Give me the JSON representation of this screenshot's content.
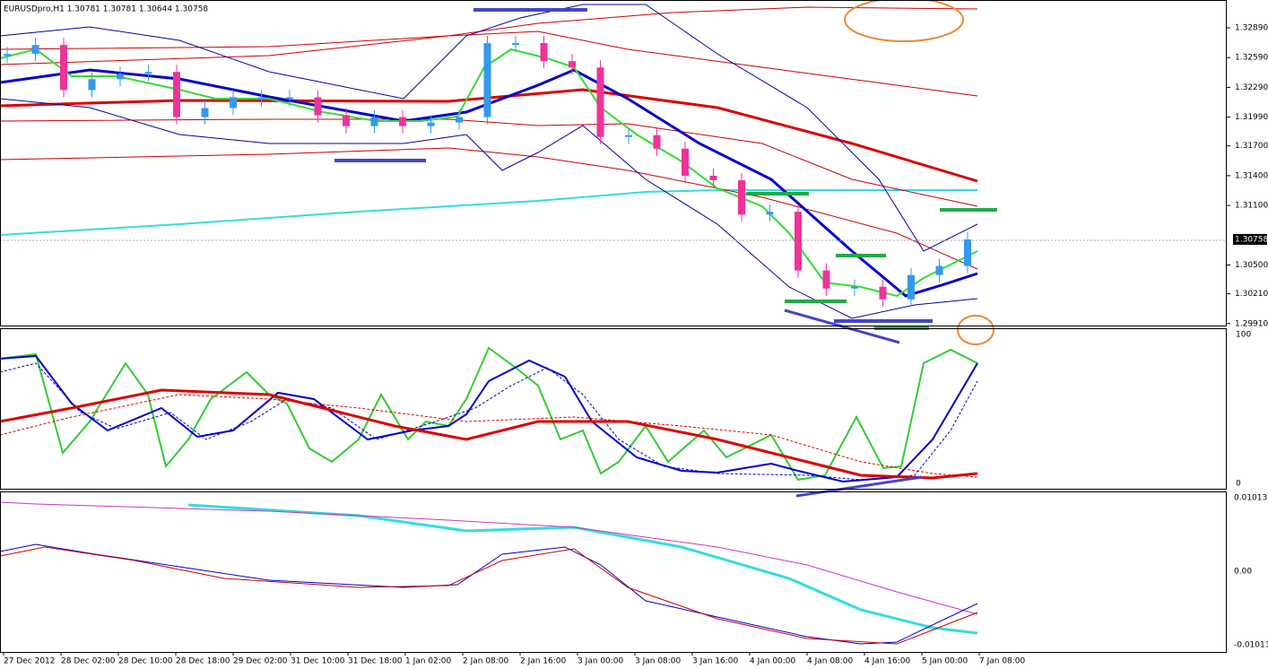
{
  "header": {
    "title": "EURUSDpro,H1  1.30781 1.30781 1.30644 1.30758"
  },
  "price_axis": {
    "ylim": [
      1.2989,
      1.3317
    ],
    "ticks": [
      {
        "value": 1.3289,
        "label": "1.32890"
      },
      {
        "value": 1.3259,
        "label": "1.32590"
      },
      {
        "value": 1.3229,
        "label": "1.32290"
      },
      {
        "value": 1.3199,
        "label": "1.31990"
      },
      {
        "value": 1.317,
        "label": "1.31700"
      },
      {
        "value": 1.314,
        "label": "1.31400"
      },
      {
        "value": 1.311,
        "label": "1.31100"
      },
      {
        "value": 1.305,
        "label": "1.30500"
      },
      {
        "value": 1.3021,
        "label": "1.30210"
      },
      {
        "value": 1.2991,
        "label": "1.29910"
      }
    ],
    "current": {
      "value": 1.30758,
      "label": "1.30758"
    }
  },
  "candles": {
    "close": [
      1.32626,
      1.32717,
      1.32263,
      1.32372,
      1.32426,
      1.32445,
      1.3199,
      1.32081,
      1.3219,
      1.3219,
      1.3219,
      1.32008,
      1.31899,
      1.3199,
      1.31899,
      1.31936,
      1.3199,
      1.32736,
      1.32736,
      1.32554,
      1.3249,
      1.3179,
      1.31808,
      1.31672,
      1.31399,
      1.31354,
      1.31008,
      1.31036,
      1.30445,
      1.30263,
      1.30281,
      1.30154,
      1.30399,
      1.3049,
      1.30758
    ]
  },
  "oscillator_axis": {
    "labels": [
      "100",
      "0"
    ]
  },
  "macd_axis": {
    "labels": [
      "0.010132",
      "0.00",
      "-0.01013"
    ]
  },
  "time_axis": {
    "labels": [
      "27 Dec 2012",
      "28 Dec 02:00",
      "28 Dec 10:00",
      "28 Dec 18:00",
      "29 Dec 02:00",
      "31 Dec 10:00",
      "31 Dec 18:00",
      "1 Jan 02:00",
      "2 Jan 08:00",
      "2 Jan 16:00",
      "3 Jan 00:00",
      "3 Jan 08:00",
      "3 Jan 16:00",
      "4 Jan 00:00",
      "4 Jan 08:00",
      "4 Jan 16:00",
      "5 Jan 00:00",
      "7 Jan 08:00"
    ]
  }
}
